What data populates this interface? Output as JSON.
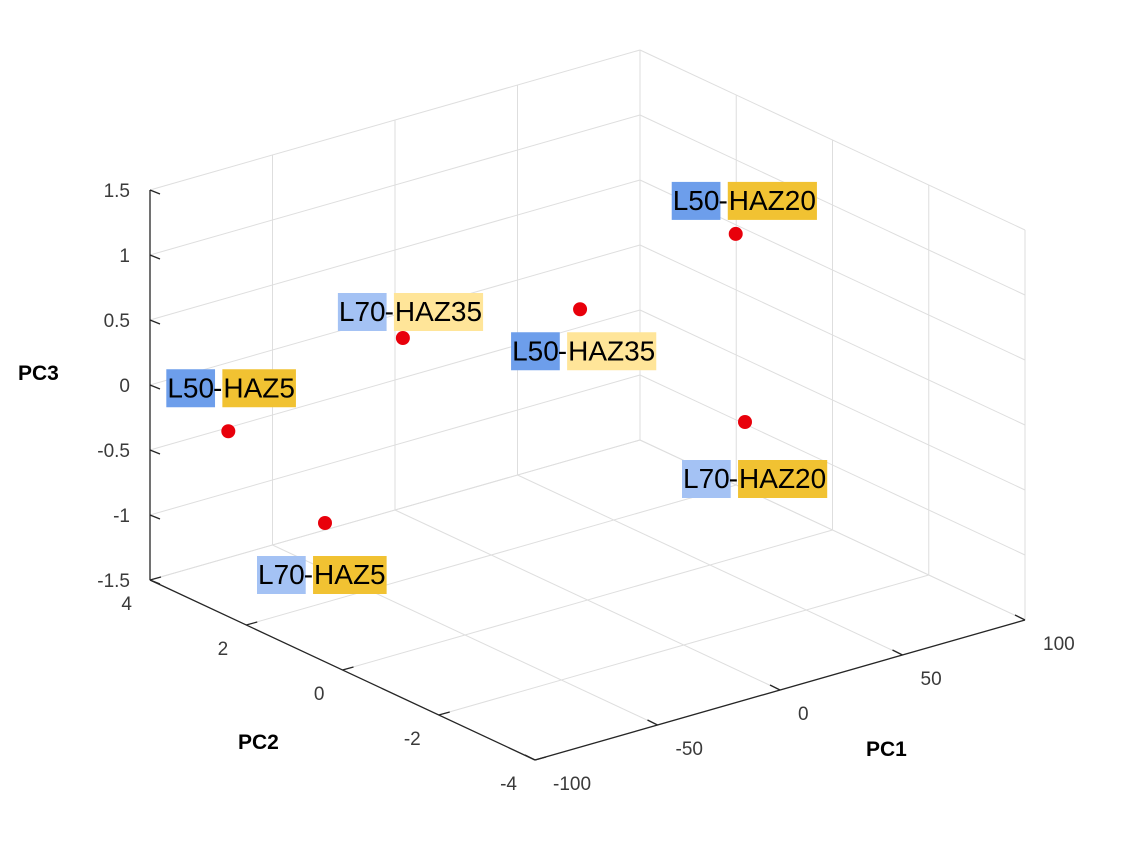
{
  "chart_data": {
    "type": "scatter3d",
    "title": "",
    "xlabel": "PC1",
    "ylabel": "PC2",
    "zlabel": "PC3",
    "xlim": [
      -100,
      100
    ],
    "ylim": [
      -4,
      4
    ],
    "zlim": [
      -1.5,
      1.5
    ],
    "x_ticks": [
      "-100",
      "-50",
      "0",
      "50",
      "100"
    ],
    "y_ticks": [
      "-4",
      "-2",
      "0",
      "2",
      "4"
    ],
    "z_ticks": [
      "-1.5",
      "-1",
      "-0.5",
      "0",
      "0.5",
      "1",
      "1.5"
    ],
    "grid": true,
    "marker_color": "#e8000b",
    "label_colors": {
      "L50": "#6d9eeb",
      "L70": "#a4c2f4",
      "HAZ5": "#f1c232",
      "HAZ20": "#f1c232",
      "HAZ35": "#ffe599"
    },
    "points": [
      {
        "x": -95,
        "y": -1,
        "z": 1.2,
        "label_a": "L70",
        "label_sep": "-",
        "label_b": "HAZ35"
      },
      {
        "x": 88,
        "y": 1.4,
        "z": 0.6,
        "label_a": "L50",
        "label_sep": "-",
        "label_b": "HAZ20"
      },
      {
        "x": -70,
        "y": 3.9,
        "z": -0.5,
        "label_a": "L50",
        "label_sep": "-",
        "label_b": "HAZ5"
      },
      {
        "x": -60,
        "y": 2.4,
        "z": -1.0,
        "label_a": "L70",
        "label_sep": "-",
        "label_b": "HAZ5"
      },
      {
        "x": 50,
        "y": 2.7,
        "z": 0.0,
        "label_a": "L50",
        "label_sep": "-",
        "label_b": "HAZ35"
      },
      {
        "x": 80,
        "y": 0.8,
        "z": -0.7,
        "label_a": "L70",
        "label_sep": "-",
        "label_b": "HAZ20"
      }
    ]
  }
}
